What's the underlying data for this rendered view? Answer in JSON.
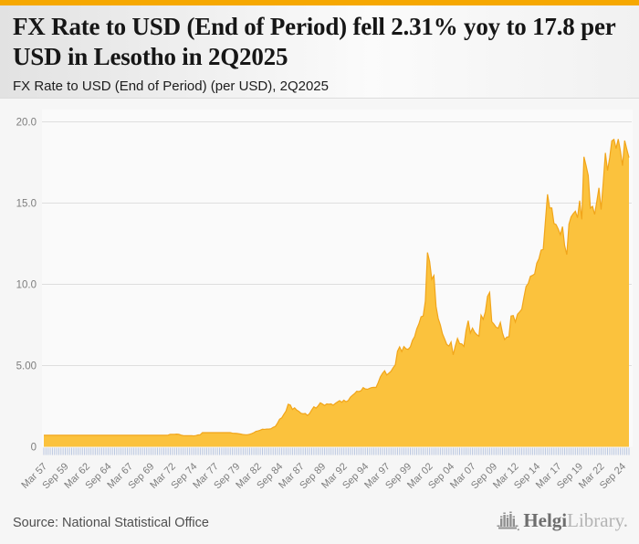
{
  "accent_color": "#F6A801",
  "header": {
    "title": "FX Rate to USD (End of Period) fell 2.31% yoy to 17.8 per USD in Lesotho in 2Q2025",
    "subtitle": "FX Rate to USD (End of Period) (per USD), 2Q2025"
  },
  "footer": {
    "source": "Source: National Statistical Office",
    "logo": {
      "icon": "bar-chart-logo-icon",
      "brand_primary": "Helgi",
      "brand_secondary": "Library."
    }
  },
  "chart_data": {
    "type": "area",
    "title": "FX Rate to USD (End of Period) (per USD), 2Q2025",
    "ylabel": "",
    "xlabel": "",
    "unit": "per USD",
    "frequency": "quarterly",
    "x_start": "Mar 57",
    "x_end": "Jun 25",
    "ylim": [
      0,
      20
    ],
    "grid": true,
    "legend": "none",
    "area_color": "#FBC23D",
    "line_color": "#F1A51A",
    "tick_color": "#b9c6e0",
    "grid_color": "#dedede",
    "axis_label_color": "#7d7d7d",
    "y_ticks": [
      {
        "label": "0",
        "value": 0
      },
      {
        "label": "5.00",
        "value": 5
      },
      {
        "label": "10.0",
        "value": 10
      },
      {
        "label": "15.0",
        "value": 15
      },
      {
        "label": "20.0",
        "value": 20
      }
    ],
    "x_tick_every": 10,
    "x_tick_labels": [
      "Mar 57",
      "Sep 59",
      "Mar 62",
      "Sep 64",
      "Mar 67",
      "Sep 69",
      "Mar 72",
      "Sep 74",
      "Mar 77",
      "Sep 79",
      "Mar 82",
      "Sep 84",
      "Mar 87",
      "Sep 89",
      "Mar 92",
      "Sep 94",
      "Mar 97",
      "Sep 99",
      "Mar 02",
      "Sep 04",
      "Mar 07",
      "Sep 09",
      "Mar 12",
      "Sep 14",
      "Mar 17",
      "Sep 19",
      "Mar 22",
      "Sep 24"
    ],
    "values": [
      0.71,
      0.71,
      0.71,
      0.71,
      0.71,
      0.71,
      0.71,
      0.71,
      0.71,
      0.71,
      0.71,
      0.71,
      0.71,
      0.71,
      0.71,
      0.71,
      0.71,
      0.71,
      0.71,
      0.71,
      0.71,
      0.71,
      0.71,
      0.71,
      0.71,
      0.71,
      0.71,
      0.71,
      0.71,
      0.71,
      0.71,
      0.71,
      0.71,
      0.71,
      0.71,
      0.71,
      0.71,
      0.71,
      0.71,
      0.71,
      0.71,
      0.71,
      0.71,
      0.71,
      0.71,
      0.71,
      0.71,
      0.71,
      0.71,
      0.71,
      0.71,
      0.71,
      0.71,
      0.71,
      0.71,
      0.71,
      0.71,
      0.71,
      0.72,
      0.77,
      0.77,
      0.77,
      0.78,
      0.77,
      0.72,
      0.69,
      0.68,
      0.68,
      0.68,
      0.68,
      0.67,
      0.69,
      0.73,
      0.74,
      0.87,
      0.87,
      0.87,
      0.87,
      0.87,
      0.87,
      0.87,
      0.87,
      0.87,
      0.87,
      0.87,
      0.87,
      0.87,
      0.87,
      0.84,
      0.83,
      0.82,
      0.8,
      0.78,
      0.75,
      0.74,
      0.74,
      0.77,
      0.81,
      0.87,
      0.95,
      0.98,
      1.02,
      1.08,
      1.07,
      1.09,
      1.09,
      1.11,
      1.2,
      1.25,
      1.45,
      1.7,
      1.78,
      2.0,
      2.2,
      2.62,
      2.57,
      2.3,
      2.4,
      2.26,
      2.18,
      2.06,
      2.03,
      2.05,
      1.93,
      2.05,
      2.27,
      2.46,
      2.38,
      2.52,
      2.71,
      2.63,
      2.54,
      2.64,
      2.62,
      2.64,
      2.56,
      2.67,
      2.76,
      2.84,
      2.74,
      2.87,
      2.77,
      2.84,
      3.05,
      3.17,
      3.27,
      3.42,
      3.4,
      3.45,
      3.64,
      3.56,
      3.54,
      3.6,
      3.65,
      3.66,
      3.65,
      3.95,
      4.3,
      4.52,
      4.68,
      4.42,
      4.53,
      4.65,
      4.87,
      5.05,
      5.88,
      6.15,
      5.86,
      6.17,
      6.03,
      6.0,
      6.15,
      6.55,
      6.78,
      7.26,
      7.57,
      8.0,
      8.05,
      8.96,
      11.96,
      11.4,
      10.31,
      10.54,
      8.64,
      7.9,
      7.5,
      6.95,
      6.64,
      6.3,
      6.2,
      6.45,
      5.66,
      6.21,
      6.67,
      6.35,
      6.33,
      6.18,
      7.15,
      7.76,
      7.0,
      7.3,
      7.05,
      6.9,
      6.81,
      8.1,
      7.85,
      8.3,
      9.25,
      9.5,
      7.7,
      7.55,
      7.36,
      7.3,
      7.65,
      7.0,
      6.6,
      6.75,
      6.77,
      8.05,
      8.08,
      7.68,
      8.16,
      8.3,
      8.47,
      9.2,
      9.87,
      10.05,
      10.49,
      10.55,
      10.64,
      11.3,
      11.57,
      12.1,
      12.15,
      13.85,
      15.54,
      14.7,
      14.7,
      13.75,
      13.68,
      13.4,
      13.06,
      13.55,
      12.38,
      11.83,
      13.7,
      14.15,
      14.35,
      14.5,
      14.1,
      15.15,
      14.0,
      17.85,
      17.3,
      16.7,
      14.69,
      14.8,
      14.3,
      15.1,
      15.94,
      14.6,
      16.27,
      18.09,
      17.0,
      17.79,
      18.83,
      18.92,
      18.36,
      18.94,
      18.22,
      17.3,
      18.85,
      18.31,
      17.8
    ]
  }
}
